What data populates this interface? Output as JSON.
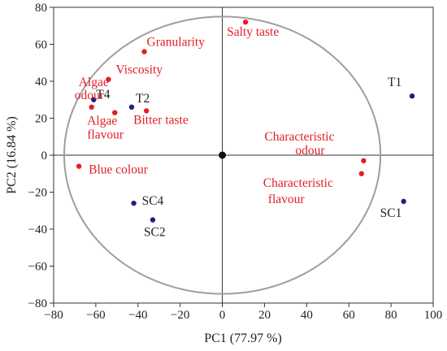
{
  "chart_data": {
    "type": "scatter",
    "xlabel": "PC1 (77.97 %)",
    "ylabel": "PC2 (16.84 %)",
    "xlim": [
      -80,
      100
    ],
    "ylim": [
      -80,
      80
    ],
    "x_ticks": [
      -80,
      -60,
      -40,
      -20,
      0,
      20,
      40,
      60,
      80,
      100
    ],
    "y_ticks": [
      -80,
      -60,
      -40,
      -20,
      0,
      20,
      40,
      60,
      80
    ],
    "x_tick_labels": [
      "−80",
      "−60",
      "−40",
      "−20",
      "0",
      "20",
      "40",
      "60",
      "80",
      "100"
    ],
    "y_tick_labels": [
      "−80",
      "−60",
      "−40",
      "−20",
      "0",
      "20",
      "40",
      "60",
      "80"
    ],
    "grid": false,
    "reference_lines": {
      "x": 0,
      "y": 0
    },
    "correlation_circle": {
      "center": [
        0,
        0
      ],
      "radius": 75
    },
    "colors": {
      "samples": "#1a237e",
      "attributes": "#e31e24",
      "circle": "#9e9e9e",
      "origin": "#111111"
    },
    "origin_point": {
      "x": 0,
      "y": 0
    },
    "series": [
      {
        "name": "samples",
        "points": [
          {
            "label": "T1",
            "x": 90,
            "y": 32
          },
          {
            "label": "T2",
            "x": -43,
            "y": 26
          },
          {
            "label": "T4",
            "x": -61,
            "y": 30
          },
          {
            "label": "SC1",
            "x": 86,
            "y": -25
          },
          {
            "label": "SC2",
            "x": -33,
            "y": -35
          },
          {
            "label": "SC4",
            "x": -42,
            "y": -26
          }
        ]
      },
      {
        "name": "attributes",
        "points": [
          {
            "label": "Salty taste",
            "x": 11,
            "y": 72
          },
          {
            "label": "Granularity",
            "x": -37,
            "y": 56
          },
          {
            "label": "Viscosity",
            "x": -54,
            "y": 41
          },
          {
            "label": "Algae odour",
            "x": -62,
            "y": 26
          },
          {
            "label": "Algae flavour",
            "x": -51,
            "y": 23
          },
          {
            "label": "Bitter taste",
            "x": -36,
            "y": 24
          },
          {
            "label": "Blue colour",
            "x": -68,
            "y": -6
          },
          {
            "label": "Characteristic odour",
            "x": 67,
            "y": -3
          },
          {
            "label": "Characteristic flavour",
            "x": 66,
            "y": -10
          }
        ]
      }
    ]
  }
}
